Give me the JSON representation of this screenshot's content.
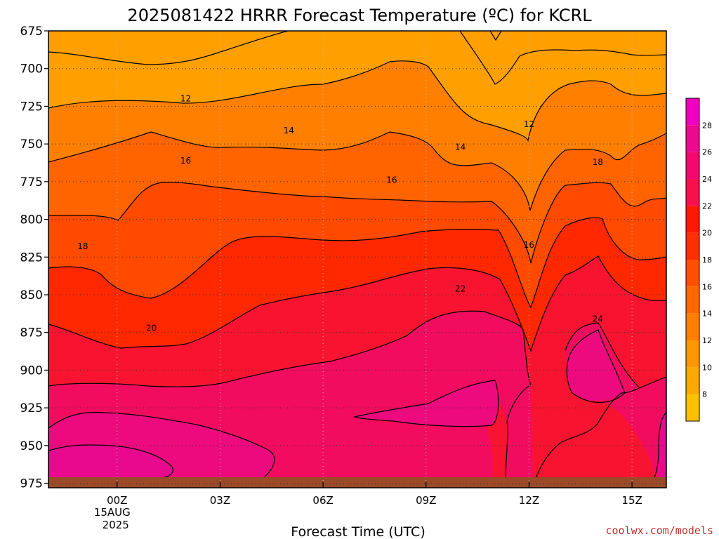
{
  "chart_data": {
    "type": "heatmap",
    "title": "2025081422 HRRR Forecast Temperature (ºC) for KCRL",
    "xlabel": "Forecast Time (UTC)",
    "ylabel": "",
    "y_ticks": [
      "675",
      "700",
      "725",
      "750",
      "775",
      "800",
      "825",
      "850",
      "875",
      "900",
      "925",
      "950",
      "975"
    ],
    "y_range": [
      675,
      978
    ],
    "y_inverted": true,
    "x_ticks": [
      {
        "label": "00Z",
        "hour": 0,
        "date_line1": "15AUG",
        "date_line2": "2025"
      },
      {
        "label": "03Z",
        "hour": 3
      },
      {
        "label": "06Z",
        "hour": 6
      },
      {
        "label": "09Z",
        "hour": 9
      },
      {
        "label": "12Z",
        "hour": 12
      },
      {
        "label": "15Z",
        "hour": 15
      }
    ],
    "x_range": [
      -2,
      16
    ],
    "grid": "dotted",
    "colorbar": {
      "ticks": [
        "8",
        "10",
        "12",
        "14",
        "16",
        "18",
        "20",
        "22",
        "24",
        "26",
        "28"
      ],
      "levels": [
        6,
        8,
        10,
        12,
        14,
        16,
        18,
        20,
        22,
        24,
        26,
        28,
        30
      ],
      "colors": [
        "#ffc000",
        "#ffa800",
        "#ff9800",
        "#ff8000",
        "#ff6800",
        "#ff5000",
        "#ff3000",
        "#ff1800",
        "#f8104c",
        "#f2086e",
        "#ec0890",
        "#f000c0"
      ]
    },
    "contour_labels": [
      {
        "text": "12",
        "hour": 2.0,
        "p": 720
      },
      {
        "text": "12",
        "hour": 12.0,
        "p": 737
      },
      {
        "text": "14",
        "hour": 5.0,
        "p": 741
      },
      {
        "text": "14",
        "hour": 10.0,
        "p": 752
      },
      {
        "text": "16",
        "hour": 2.0,
        "p": 761
      },
      {
        "text": "16",
        "hour": 8.0,
        "p": 774
      },
      {
        "text": "16",
        "hour": 12.0,
        "p": 817
      },
      {
        "text": "18",
        "hour": -1.0,
        "p": 818
      },
      {
        "text": "18",
        "hour": 14.0,
        "p": 762
      },
      {
        "text": "20",
        "hour": 1.0,
        "p": 872
      },
      {
        "text": "22",
        "hour": 10.0,
        "p": 846
      },
      {
        "text": "24",
        "hour": 14.0,
        "p": 866
      }
    ],
    "ground_color": "#9a4a28"
  },
  "credit": "coolwx.com/models"
}
